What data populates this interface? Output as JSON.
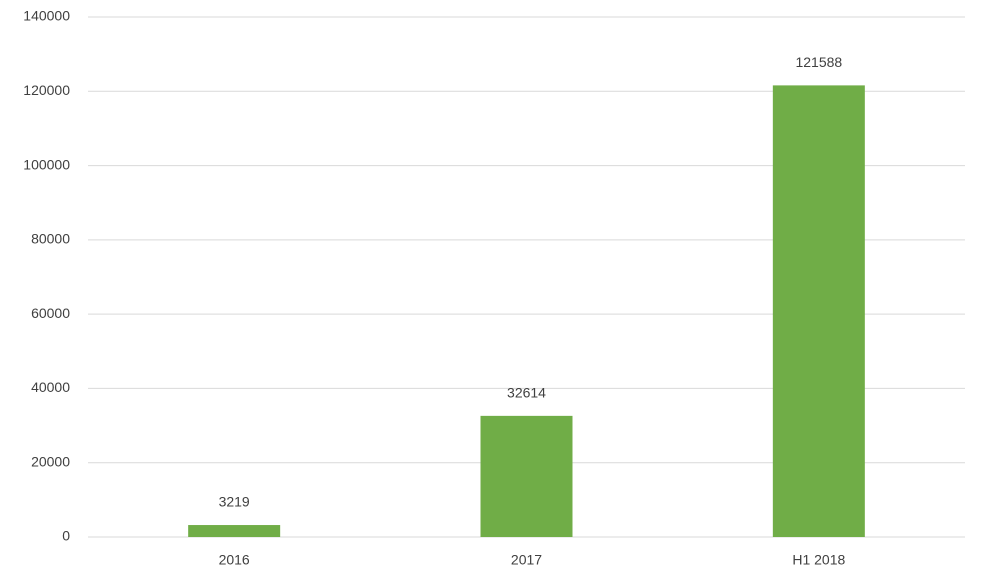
{
  "chart_data": {
    "type": "bar",
    "categories": [
      "2016",
      "2017",
      "H1 2018"
    ],
    "values": [
      3219,
      32614,
      121588
    ],
    "color": "#70ad47",
    "ylim": [
      0,
      140000
    ],
    "yticks": [
      0,
      20000,
      40000,
      60000,
      80000,
      100000,
      120000,
      140000
    ],
    "grid": true
  }
}
